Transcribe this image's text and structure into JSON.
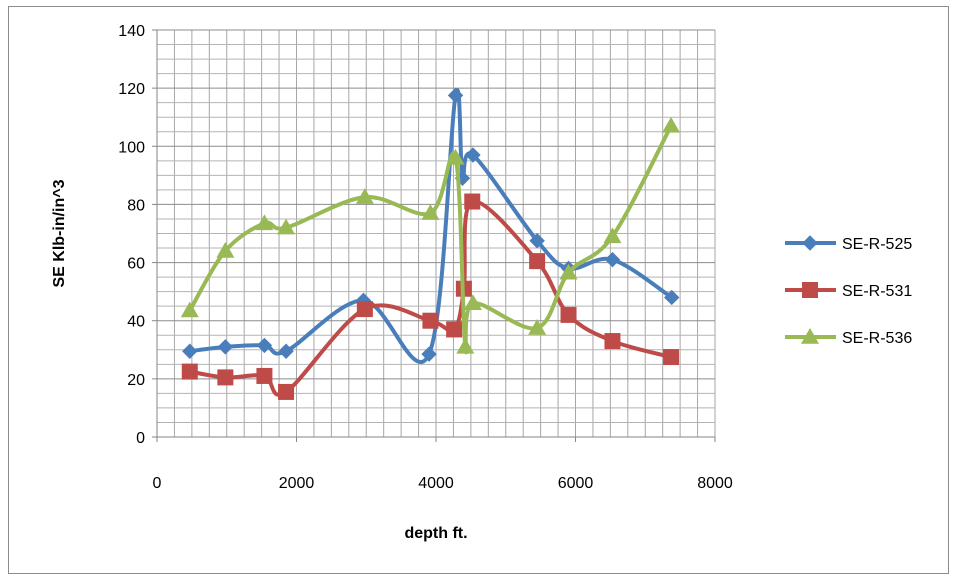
{
  "chart_data": {
    "type": "line",
    "smooth": true,
    "xlabel": "depth ft.",
    "ylabel": "SE Klb-in/in^3",
    "xlim": [
      0,
      8000
    ],
    "ylim": [
      0,
      140
    ],
    "x_ticks": [
      0,
      2000,
      4000,
      6000,
      8000
    ],
    "y_ticks": [
      0,
      20,
      40,
      60,
      80,
      100,
      120,
      140
    ],
    "x_minor_step": 250,
    "y_minor_step": 5,
    "grid": true,
    "legend_position": "right",
    "series": [
      {
        "name": "SE-R-525",
        "color": "#4a7ebb",
        "marker": "diamond",
        "points": [
          [
            470,
            29.5
          ],
          [
            980,
            31
          ],
          [
            1540,
            31.5
          ],
          [
            1850,
            29.5
          ],
          [
            2960,
            47
          ],
          [
            3900,
            28.5
          ],
          [
            4280,
            117.5
          ],
          [
            4380,
            89
          ],
          [
            4530,
            97
          ],
          [
            5450,
            67.5
          ],
          [
            5900,
            58
          ],
          [
            6530,
            61
          ],
          [
            7380,
            48
          ]
        ]
      },
      {
        "name": "SE-R-531",
        "color": "#be4b48",
        "marker": "square",
        "points": [
          [
            470,
            22.5
          ],
          [
            980,
            20.5
          ],
          [
            1540,
            21
          ],
          [
            1850,
            15.5
          ],
          [
            2980,
            44
          ],
          [
            3920,
            40
          ],
          [
            4260,
            37
          ],
          [
            4400,
            51
          ],
          [
            4520,
            81
          ],
          [
            5450,
            60.5
          ],
          [
            5900,
            42
          ],
          [
            6530,
            33
          ],
          [
            7370,
            27.5
          ]
        ]
      },
      {
        "name": "SE-R-536",
        "color": "#98b954",
        "marker": "triangle",
        "points": [
          [
            470,
            43.5
          ],
          [
            980,
            64
          ],
          [
            1540,
            73.5
          ],
          [
            1850,
            72
          ],
          [
            2980,
            82.5
          ],
          [
            3920,
            77
          ],
          [
            4280,
            96
          ],
          [
            4420,
            31
          ],
          [
            4530,
            46
          ],
          [
            5450,
            37.5
          ],
          [
            5900,
            56.5
          ],
          [
            6530,
            69
          ],
          [
            7370,
            107
          ]
        ]
      }
    ]
  }
}
